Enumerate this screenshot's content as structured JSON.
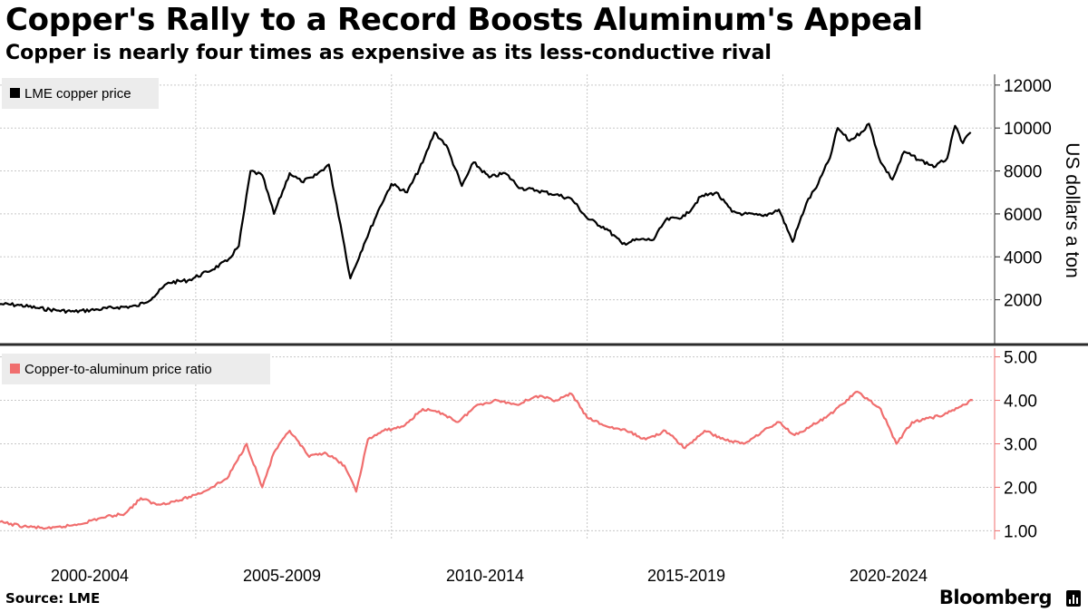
{
  "header": {
    "title": "Copper's Rally to a Record Boosts Aluminum's Appeal",
    "subtitle": "Copper is nearly four times as expensive as its less-conductive rival"
  },
  "footer": {
    "source": "Source: LME",
    "brand": "Bloomberg"
  },
  "colors": {
    "copper_line": "#000000",
    "ratio_line": "#f06e6e",
    "grid": "#c8c8c8",
    "legend_bg": "#ececec"
  },
  "chart_data": [
    {
      "type": "line",
      "panel": "top",
      "legend": "LME copper price",
      "ylabel": "US dollars a ton",
      "ylim": [
        0,
        12500
      ],
      "yticks": [
        2000,
        4000,
        6000,
        8000,
        10000,
        12000
      ],
      "ytick_labels": [
        "2000",
        "4000",
        "6000",
        "8000",
        "10000",
        "12000"
      ],
      "xlim": [
        2000.0,
        2024.9
      ],
      "x": [
        2000.0,
        2000.5,
        2001.0,
        2001.5,
        2001.9,
        2002.5,
        2003.0,
        2003.5,
        2003.9,
        2004.3,
        2004.8,
        2005.3,
        2005.8,
        2006.1,
        2006.4,
        2006.7,
        2007.0,
        2007.4,
        2007.7,
        2008.0,
        2008.4,
        2008.7,
        2008.95,
        2009.3,
        2009.7,
        2010.0,
        2010.4,
        2010.8,
        2011.1,
        2011.4,
        2011.8,
        2012.1,
        2012.5,
        2012.9,
        2013.3,
        2013.7,
        2014.2,
        2014.6,
        2015.0,
        2015.5,
        2015.9,
        2016.3,
        2016.7,
        2017.0,
        2017.5,
        2017.9,
        2018.3,
        2018.7,
        2019.0,
        2019.5,
        2019.9,
        2020.25,
        2020.6,
        2020.9,
        2021.2,
        2021.4,
        2021.7,
        2022.0,
        2022.2,
        2022.5,
        2022.8,
        2023.1,
        2023.5,
        2023.9,
        2024.2,
        2024.4,
        2024.6,
        2024.8
      ],
      "y": [
        1800,
        1750,
        1600,
        1500,
        1450,
        1550,
        1650,
        1700,
        2100,
        2800,
        2900,
        3300,
        3800,
        4500,
        8000,
        7800,
        6000,
        7900,
        7500,
        7700,
        8300,
        5500,
        3000,
        4600,
        6300,
        7400,
        7000,
        8400,
        9800,
        9200,
        7300,
        8400,
        7700,
        7900,
        7200,
        7100,
        6900,
        6700,
        5800,
        5300,
        4600,
        4800,
        4800,
        5700,
        5900,
        6800,
        7000,
        6100,
        6000,
        5900,
        6200,
        4700,
        6500,
        7400,
        8600,
        10000,
        9400,
        9800,
        10200,
        8400,
        7600,
        8900,
        8500,
        8200,
        8600,
        10100,
        9300,
        9800
      ]
    },
    {
      "type": "line",
      "panel": "bottom",
      "legend": "Copper-to-aluminum price ratio",
      "ylim": [
        0.8,
        5.2
      ],
      "yticks": [
        1,
        2,
        3,
        4,
        5
      ],
      "ytick_labels": [
        "1.00",
        "2.00",
        "3.00",
        "4.00",
        "5.00"
      ],
      "xlim": [
        2000.0,
        2024.9
      ],
      "x": [
        2000.0,
        2000.6,
        2001.3,
        2002.0,
        2002.6,
        2003.2,
        2003.6,
        2004.0,
        2004.6,
        2005.2,
        2005.8,
        2006.3,
        2006.7,
        2007.0,
        2007.4,
        2007.9,
        2008.3,
        2008.8,
        2009.1,
        2009.4,
        2009.8,
        2010.3,
        2010.8,
        2011.3,
        2011.7,
        2012.2,
        2012.7,
        2013.2,
        2013.7,
        2014.2,
        2014.6,
        2015.0,
        2015.5,
        2016.0,
        2016.5,
        2017.0,
        2017.5,
        2018.0,
        2018.5,
        2019.0,
        2019.5,
        2019.9,
        2020.3,
        2020.7,
        2021.1,
        2021.5,
        2021.9,
        2022.2,
        2022.5,
        2022.9,
        2023.3,
        2023.8,
        2024.2,
        2024.6,
        2024.85
      ],
      "y": [
        1.2,
        1.1,
        1.05,
        1.15,
        1.3,
        1.4,
        1.75,
        1.6,
        1.7,
        1.9,
        2.2,
        3.0,
        2.0,
        2.8,
        3.3,
        2.7,
        2.8,
        2.5,
        1.9,
        3.1,
        3.3,
        3.4,
        3.8,
        3.7,
        3.5,
        3.9,
        4.0,
        3.9,
        4.1,
        4.0,
        4.15,
        3.6,
        3.4,
        3.3,
        3.1,
        3.3,
        2.9,
        3.3,
        3.1,
        3.0,
        3.3,
        3.5,
        3.2,
        3.4,
        3.6,
        3.9,
        4.2,
        4.0,
        3.8,
        3.0,
        3.5,
        3.6,
        3.7,
        3.9,
        4.0
      ]
    }
  ],
  "x_axis": {
    "tick_labels": [
      "2000-2004",
      "2005-2009",
      "2010-2014",
      "2015-2019",
      "2020-2024"
    ]
  }
}
